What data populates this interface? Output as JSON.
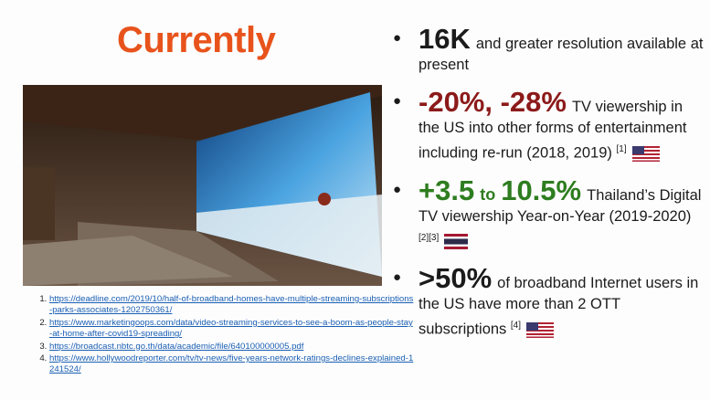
{
  "title": "Currently",
  "bullets": [
    {
      "highlight": "16K",
      "text": "and greater resolution available at present"
    },
    {
      "highlight": "-20%, -28%",
      "text": "TV viewership in the US into other forms of entertainment including re-run (2018, 2019)",
      "ref": "[1]"
    },
    {
      "highlight": "+3.5",
      "connector": "to",
      "highlight2": "10.5%",
      "text": "Thailand’s Digital TV viewership Year-on-Year (2019-2020)",
      "ref": "[2][3]"
    },
    {
      "highlight": ">50%",
      "text": "of broadband Internet users in the US have more than 2 OTT subscriptions",
      "ref": "[4]"
    }
  ],
  "references": [
    "https://deadline.com/2019/10/half-of-broadband-homes-have-multiple-streaming-subscriptions-parks-associates-1202750361/",
    "https://www.marketingoops.com/data/video-streaming-services-to-see-a-boom-as-people-stay-at-home-after-covid19-spreading/",
    "https://broadcast.nbtc.go.th/data/academic/file/640100000005.pdf",
    "https://www.hollywoodreporter.com/tv/tv-news/five-years-network-ratings-declines-explained-1241524/"
  ]
}
